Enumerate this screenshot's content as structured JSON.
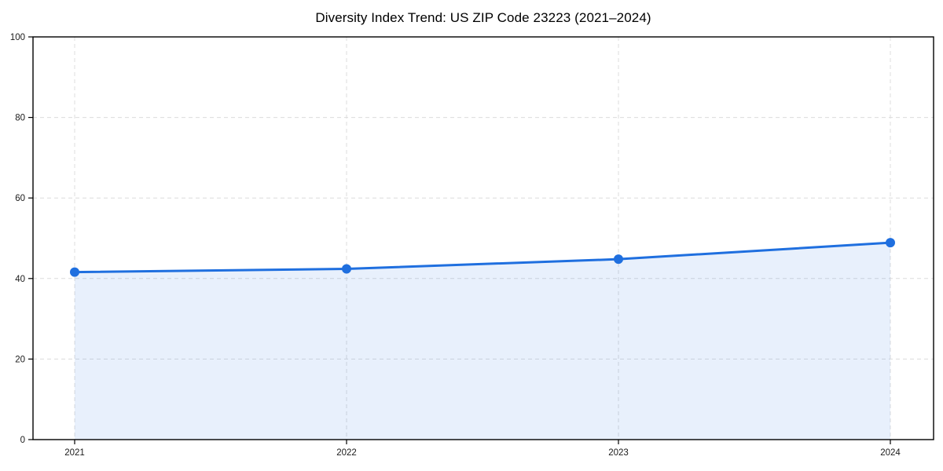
{
  "figure": {
    "background": "#ffffff"
  },
  "chart_data": {
    "type": "line",
    "title": "Diversity Index Trend: US ZIP Code 23223 (2021–2024)",
    "categories": [
      "2021",
      "2022",
      "2023",
      "2024"
    ],
    "series": [
      {
        "name": "Diversity Index",
        "values": [
          41.6,
          42.4,
          44.8,
          48.9
        ]
      }
    ],
    "xlabel": "",
    "ylabel": "",
    "ylim": [
      0,
      100
    ],
    "yticks": [
      0,
      20,
      40,
      60,
      80,
      100
    ],
    "grid": "dashed-both-axes",
    "legend": "none",
    "area_fill": true,
    "marker": "circle",
    "colors": {
      "line": "#1f6fdf",
      "marker": "#1f6fdf",
      "area_fill_opacity": "0.10",
      "grid": "#dcdcdc",
      "axis": "#000000",
      "title_text": "#000000",
      "tick_text": "#1a1a1a"
    }
  }
}
